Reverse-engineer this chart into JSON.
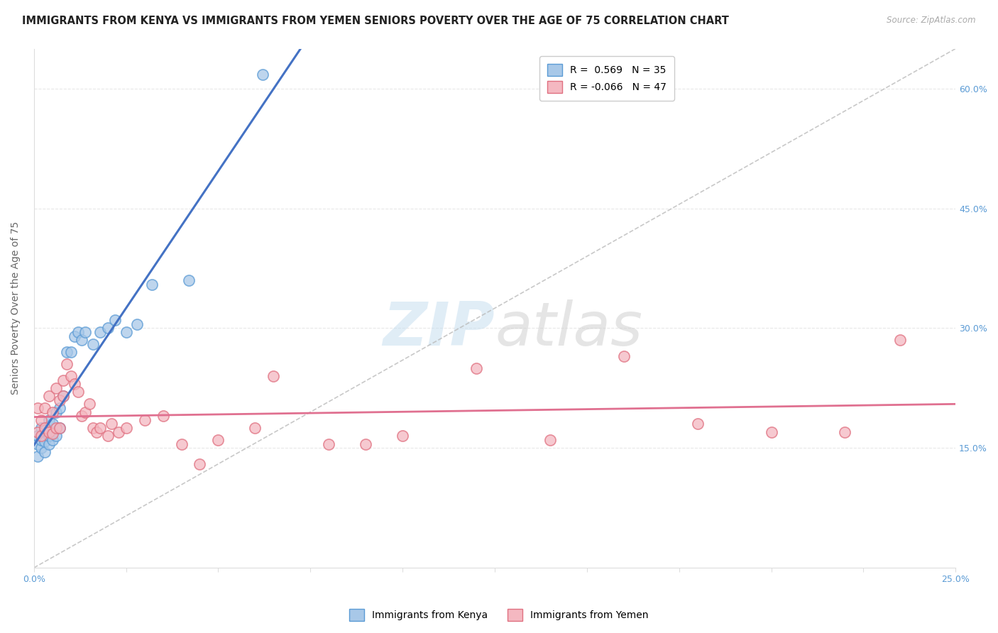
{
  "title": "IMMIGRANTS FROM KENYA VS IMMIGRANTS FROM YEMEN SENIORS POVERTY OVER THE AGE OF 75 CORRELATION CHART",
  "source": "Source: ZipAtlas.com",
  "ylabel": "Seniors Poverty Over the Age of 75",
  "xlim": [
    0.0,
    0.25
  ],
  "ylim": [
    0.0,
    0.65
  ],
  "xticks": [
    0.0,
    0.025,
    0.05,
    0.075,
    0.1,
    0.125,
    0.15,
    0.175,
    0.2,
    0.225,
    0.25
  ],
  "right_yticks": [
    0.15,
    0.3,
    0.45,
    0.6
  ],
  "right_yticklabels": [
    "15.0%",
    "30.0%",
    "45.0%",
    "60.0%"
  ],
  "kenya_color": "#a8c8e8",
  "kenya_edge": "#5b9bd5",
  "yemen_color": "#f4b8c1",
  "yemen_edge": "#e07080",
  "kenya_line_color": "#4472c4",
  "yemen_line_color": "#e07090",
  "kenya_R": 0.569,
  "kenya_N": 35,
  "yemen_R": -0.066,
  "yemen_N": 47,
  "kenya_x": [
    0.001,
    0.001,
    0.001,
    0.002,
    0.002,
    0.002,
    0.003,
    0.003,
    0.003,
    0.004,
    0.004,
    0.004,
    0.005,
    0.005,
    0.005,
    0.006,
    0.006,
    0.007,
    0.007,
    0.008,
    0.009,
    0.01,
    0.011,
    0.012,
    0.013,
    0.014,
    0.016,
    0.018,
    0.02,
    0.022,
    0.025,
    0.028,
    0.032,
    0.042,
    0.062
  ],
  "kenya_y": [
    0.14,
    0.155,
    0.165,
    0.15,
    0.16,
    0.175,
    0.145,
    0.158,
    0.172,
    0.155,
    0.165,
    0.185,
    0.16,
    0.17,
    0.18,
    0.165,
    0.195,
    0.175,
    0.2,
    0.215,
    0.27,
    0.27,
    0.29,
    0.295,
    0.285,
    0.295,
    0.28,
    0.295,
    0.3,
    0.31,
    0.295,
    0.305,
    0.355,
    0.36,
    0.618
  ],
  "yemen_x": [
    0.001,
    0.001,
    0.002,
    0.002,
    0.003,
    0.003,
    0.004,
    0.004,
    0.005,
    0.005,
    0.006,
    0.006,
    0.007,
    0.007,
    0.008,
    0.008,
    0.009,
    0.01,
    0.011,
    0.012,
    0.013,
    0.014,
    0.015,
    0.016,
    0.017,
    0.018,
    0.02,
    0.021,
    0.023,
    0.025,
    0.03,
    0.035,
    0.04,
    0.045,
    0.05,
    0.06,
    0.065,
    0.08,
    0.09,
    0.1,
    0.12,
    0.14,
    0.16,
    0.18,
    0.2,
    0.22,
    0.235
  ],
  "yemen_y": [
    0.17,
    0.2,
    0.165,
    0.185,
    0.175,
    0.2,
    0.17,
    0.215,
    0.168,
    0.195,
    0.175,
    0.225,
    0.175,
    0.21,
    0.215,
    0.235,
    0.255,
    0.24,
    0.23,
    0.22,
    0.19,
    0.195,
    0.205,
    0.175,
    0.17,
    0.175,
    0.165,
    0.18,
    0.17,
    0.175,
    0.185,
    0.19,
    0.155,
    0.13,
    0.16,
    0.175,
    0.24,
    0.155,
    0.155,
    0.165,
    0.25,
    0.16,
    0.265,
    0.18,
    0.17,
    0.17,
    0.285
  ],
  "watermark_zip": "ZIP",
  "watermark_atlas": "atlas",
  "background_color": "#ffffff",
  "grid_color": "#e8e8e8",
  "title_fontsize": 10.5,
  "axis_label_fontsize": 10,
  "tick_fontsize": 9,
  "legend_fontsize": 10
}
